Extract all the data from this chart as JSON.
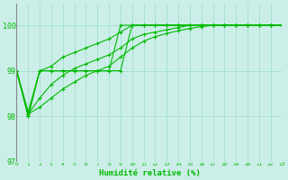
{
  "title": "",
  "xlabel": "Humidité relative (%)",
  "ylabel": "",
  "bg_color": "#cceee8",
  "grid_color": "#99ddcc",
  "line_color": "#00bb00",
  "xlim": [
    0,
    23
  ],
  "ylim": [
    97,
    100.5
  ],
  "yticks": [
    97,
    98,
    99,
    100
  ],
  "xticks": [
    0,
    1,
    2,
    3,
    4,
    5,
    6,
    7,
    8,
    9,
    10,
    11,
    12,
    13,
    14,
    15,
    16,
    17,
    18,
    19,
    20,
    21,
    22,
    23
  ],
  "series": [
    [
      99,
      98,
      99,
      99,
      99,
      99,
      99,
      99,
      99,
      99,
      100,
      100,
      100,
      100,
      100,
      100,
      100,
      100,
      100,
      100,
      100,
      100,
      100,
      100
    ],
    [
      99,
      98,
      99,
      99,
      99,
      99,
      99,
      99,
      99,
      100,
      100,
      100,
      100,
      100,
      100,
      100,
      100,
      100,
      100,
      100,
      100,
      100,
      100,
      100
    ],
    [
      99,
      98.1,
      99.0,
      99.1,
      99.3,
      99.4,
      99.5,
      99.6,
      99.7,
      99.85,
      100,
      100,
      100,
      100,
      100,
      100,
      100,
      100,
      100,
      100,
      100,
      100,
      100,
      100
    ],
    [
      99,
      98.05,
      98.4,
      98.7,
      98.9,
      99.05,
      99.15,
      99.25,
      99.35,
      99.5,
      99.7,
      99.8,
      99.85,
      99.9,
      99.95,
      100,
      100,
      100,
      100,
      100,
      100,
      100,
      100,
      100
    ],
    [
      99,
      98.05,
      98.2,
      98.4,
      98.6,
      98.75,
      98.9,
      99.0,
      99.1,
      99.3,
      99.5,
      99.65,
      99.75,
      99.82,
      99.88,
      99.93,
      99.97,
      100,
      100,
      100,
      100,
      100,
      100,
      100
    ]
  ]
}
